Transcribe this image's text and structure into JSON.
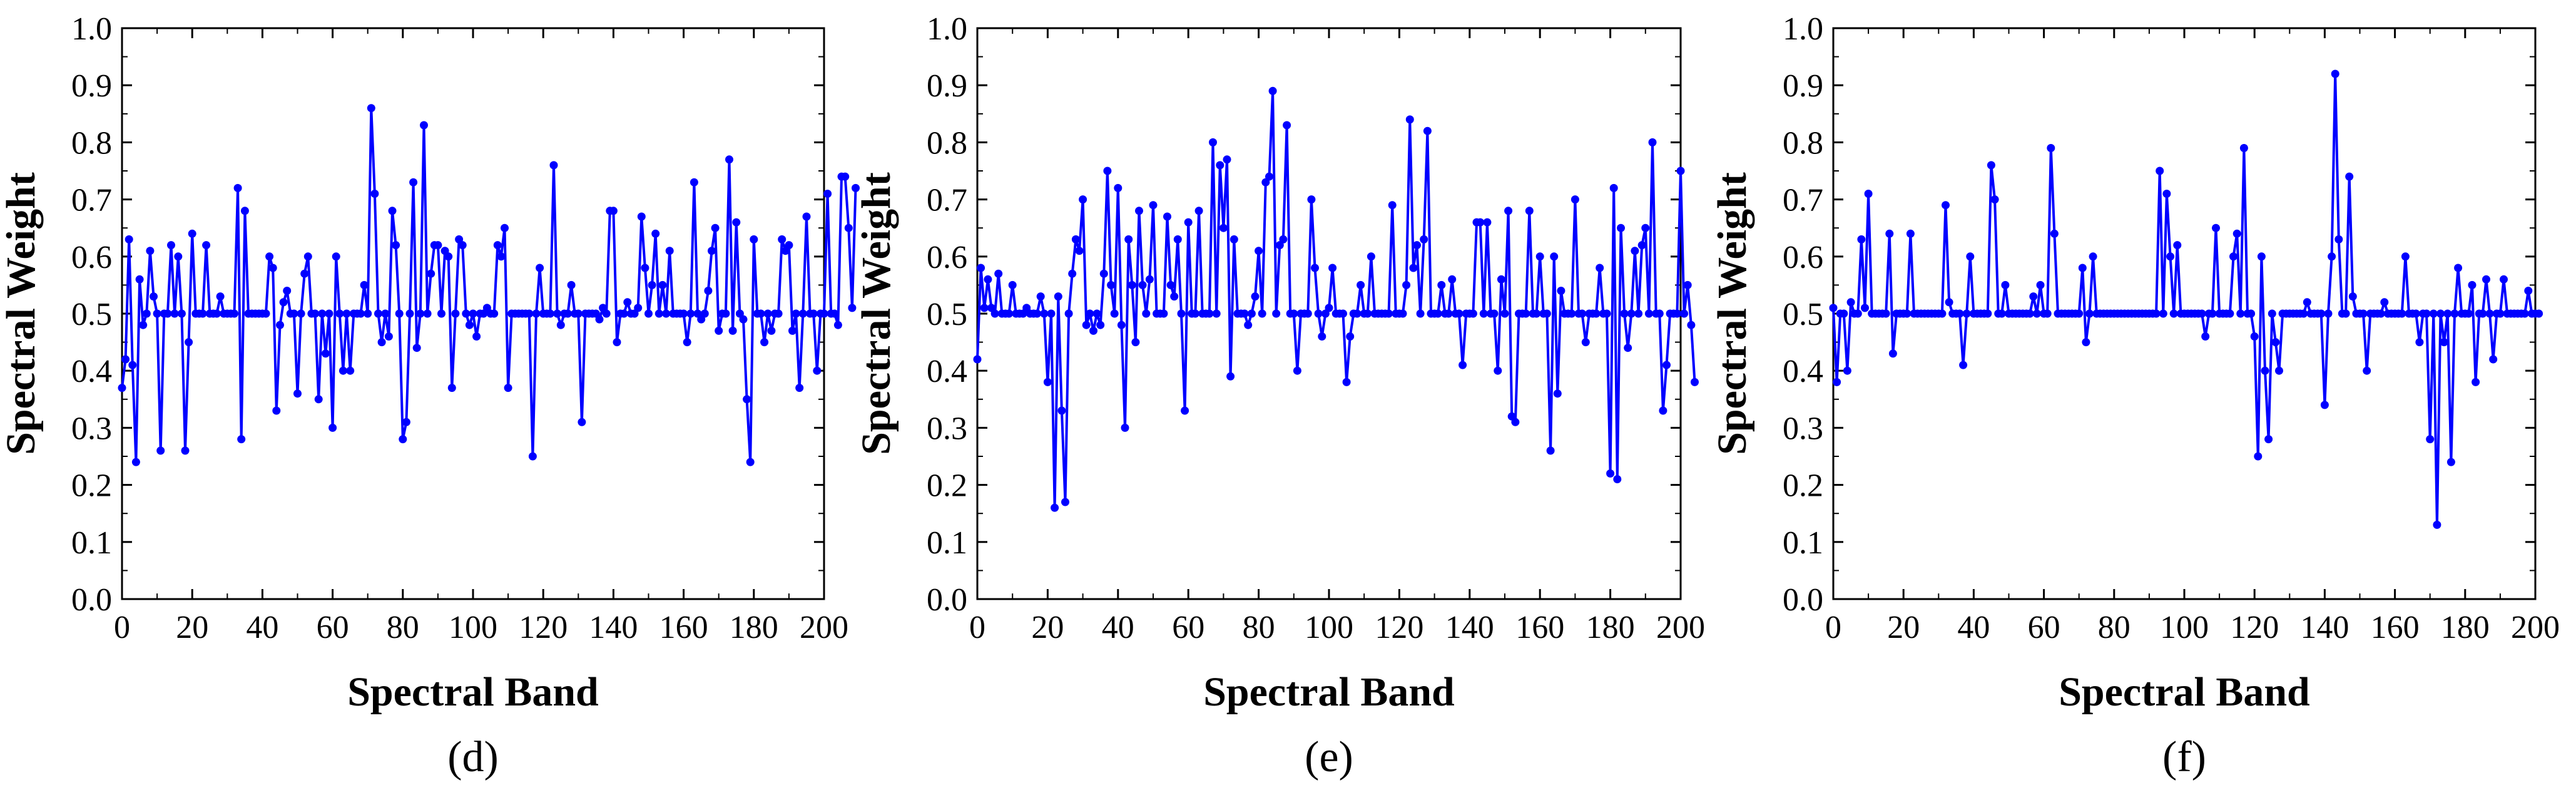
{
  "colors": {
    "series": "#0000ff",
    "axis": "#000000",
    "background": "#ffffff"
  },
  "chart_data": [
    {
      "type": "line",
      "panel_label": "(d)",
      "xlabel": "Spectral Band",
      "ylabel": "Spectral Weight",
      "xlim": [
        0,
        200
      ],
      "ylim": [
        0.0,
        1.0
      ],
      "xticks": [
        "0",
        "20",
        "40",
        "60",
        "80",
        "100",
        "120",
        "140",
        "160",
        "180",
        "200"
      ],
      "yticks": [
        "0.0",
        "0.1",
        "0.2",
        "0.3",
        "0.4",
        "0.5",
        "0.6",
        "0.7",
        "0.8",
        "0.9",
        "1.0"
      ],
      "grid": false,
      "markers": true,
      "x_start": 0,
      "values": [
        0.37,
        0.42,
        0.63,
        0.41,
        0.24,
        0.56,
        0.48,
        0.5,
        0.61,
        0.53,
        0.5,
        0.26,
        0.5,
        0.5,
        0.62,
        0.5,
        0.6,
        0.5,
        0.26,
        0.45,
        0.64,
        0.5,
        0.5,
        0.5,
        0.62,
        0.5,
        0.5,
        0.5,
        0.53,
        0.5,
        0.5,
        0.5,
        0.5,
        0.72,
        0.28,
        0.68,
        0.5,
        0.5,
        0.5,
        0.5,
        0.5,
        0.5,
        0.6,
        0.58,
        0.33,
        0.48,
        0.52,
        0.54,
        0.5,
        0.5,
        0.36,
        0.5,
        0.57,
        0.6,
        0.5,
        0.5,
        0.35,
        0.5,
        0.43,
        0.5,
        0.3,
        0.6,
        0.5,
        0.4,
        0.5,
        0.4,
        0.5,
        0.5,
        0.5,
        0.55,
        0.5,
        0.86,
        0.71,
        0.5,
        0.45,
        0.5,
        0.46,
        0.68,
        0.62,
        0.5,
        0.28,
        0.31,
        0.5,
        0.73,
        0.44,
        0.5,
        0.83,
        0.5,
        0.57,
        0.62,
        0.62,
        0.5,
        0.61,
        0.6,
        0.37,
        0.5,
        0.63,
        0.62,
        0.5,
        0.48,
        0.5,
        0.46,
        0.5,
        0.5,
        0.51,
        0.5,
        0.5,
        0.62,
        0.6,
        0.65,
        0.37,
        0.5,
        0.5,
        0.5,
        0.5,
        0.5,
        0.5,
        0.25,
        0.5,
        0.58,
        0.5,
        0.5,
        0.5,
        0.76,
        0.5,
        0.48,
        0.5,
        0.5,
        0.55,
        0.5,
        0.5,
        0.31,
        0.5,
        0.5,
        0.5,
        0.5,
        0.49,
        0.51,
        0.5,
        0.68,
        0.68,
        0.45,
        0.5,
        0.5,
        0.52,
        0.5,
        0.5,
        0.51,
        0.67,
        0.58,
        0.5,
        0.55,
        0.64,
        0.5,
        0.55,
        0.5,
        0.61,
        0.5,
        0.5,
        0.5,
        0.5,
        0.45,
        0.5,
        0.73,
        0.5,
        0.49,
        0.5,
        0.54,
        0.61,
        0.65,
        0.47,
        0.5,
        0.5,
        0.77,
        0.47,
        0.66,
        0.5,
        0.49,
        0.35,
        0.24,
        0.63,
        0.5,
        0.5,
        0.45,
        0.5,
        0.47,
        0.5,
        0.5,
        0.63,
        0.61,
        0.62,
        0.47,
        0.5,
        0.37,
        0.5,
        0.67,
        0.5,
        0.5,
        0.4,
        0.5,
        0.5,
        0.71,
        0.5,
        0.5,
        0.48,
        0.74,
        0.74,
        0.65,
        0.51,
        0.72
      ]
    },
    {
      "type": "line",
      "panel_label": "(e)",
      "xlabel": "Spectral Band",
      "ylabel": "Spectral Weight",
      "xlim": [
        0,
        200
      ],
      "ylim": [
        0.0,
        1.0
      ],
      "xticks": [
        "0",
        "20",
        "40",
        "60",
        "80",
        "100",
        "120",
        "140",
        "160",
        "180",
        "200"
      ],
      "yticks": [
        "0.0",
        "0.1",
        "0.2",
        "0.3",
        "0.4",
        "0.5",
        "0.6",
        "0.7",
        "0.8",
        "0.9",
        "1.0"
      ],
      "grid": false,
      "markers": true,
      "x_start": 0,
      "values": [
        0.42,
        0.58,
        0.51,
        0.56,
        0.51,
        0.5,
        0.57,
        0.5,
        0.5,
        0.5,
        0.55,
        0.5,
        0.5,
        0.5,
        0.51,
        0.5,
        0.5,
        0.5,
        0.53,
        0.5,
        0.38,
        0.5,
        0.16,
        0.53,
        0.33,
        0.17,
        0.5,
        0.57,
        0.63,
        0.61,
        0.7,
        0.48,
        0.5,
        0.47,
        0.5,
        0.48,
        0.57,
        0.75,
        0.55,
        0.5,
        0.72,
        0.48,
        0.3,
        0.63,
        0.55,
        0.45,
        0.68,
        0.55,
        0.5,
        0.56,
        0.69,
        0.5,
        0.5,
        0.5,
        0.67,
        0.55,
        0.53,
        0.63,
        0.5,
        0.33,
        0.66,
        0.5,
        0.5,
        0.68,
        0.5,
        0.5,
        0.5,
        0.8,
        0.5,
        0.76,
        0.65,
        0.77,
        0.39,
        0.63,
        0.5,
        0.5,
        0.5,
        0.48,
        0.5,
        0.53,
        0.61,
        0.5,
        0.73,
        0.74,
        0.89,
        0.5,
        0.62,
        0.63,
        0.83,
        0.5,
        0.5,
        0.4,
        0.5,
        0.5,
        0.5,
        0.7,
        0.58,
        0.5,
        0.46,
        0.5,
        0.51,
        0.58,
        0.5,
        0.5,
        0.5,
        0.38,
        0.46,
        0.5,
        0.5,
        0.55,
        0.5,
        0.5,
        0.6,
        0.5,
        0.5,
        0.5,
        0.5,
        0.5,
        0.69,
        0.5,
        0.5,
        0.5,
        0.55,
        0.84,
        0.58,
        0.62,
        0.5,
        0.63,
        0.82,
        0.5,
        0.5,
        0.5,
        0.55,
        0.5,
        0.5,
        0.56,
        0.5,
        0.5,
        0.41,
        0.5,
        0.5,
        0.5,
        0.66,
        0.66,
        0.5,
        0.66,
        0.5,
        0.5,
        0.4,
        0.56,
        0.5,
        0.68,
        0.32,
        0.31,
        0.5,
        0.5,
        0.5,
        0.68,
        0.5,
        0.5,
        0.6,
        0.5,
        0.5,
        0.26,
        0.6,
        0.36,
        0.54,
        0.5,
        0.5,
        0.5,
        0.7,
        0.5,
        0.5,
        0.45,
        0.5,
        0.5,
        0.5,
        0.58,
        0.5,
        0.5,
        0.22,
        0.72,
        0.21,
        0.65,
        0.5,
        0.44,
        0.5,
        0.61,
        0.5,
        0.62,
        0.65,
        0.5,
        0.8,
        0.5,
        0.5,
        0.33,
        0.41,
        0.5,
        0.5,
        0.5,
        0.75,
        0.5,
        0.55,
        0.48,
        0.38
      ]
    },
    {
      "type": "line",
      "panel_label": "(f)",
      "xlabel": "Spectral Band",
      "ylabel": "Spectral Weight",
      "xlim": [
        0,
        200
      ],
      "ylim": [
        0.0,
        1.0
      ],
      "xticks": [
        "0",
        "20",
        "40",
        "60",
        "80",
        "100",
        "120",
        "140",
        "160",
        "180",
        "200"
      ],
      "yticks": [
        "0.0",
        "0.1",
        "0.2",
        "0.3",
        "0.4",
        "0.5",
        "0.6",
        "0.7",
        "0.8",
        "0.9",
        "1.0"
      ],
      "grid": false,
      "markers": true,
      "x_start": 0,
      "values": [
        0.51,
        0.38,
        0.5,
        0.5,
        0.4,
        0.52,
        0.5,
        0.5,
        0.63,
        0.51,
        0.71,
        0.5,
        0.5,
        0.5,
        0.5,
        0.5,
        0.64,
        0.43,
        0.5,
        0.5,
        0.5,
        0.5,
        0.64,
        0.5,
        0.5,
        0.5,
        0.5,
        0.5,
        0.5,
        0.5,
        0.5,
        0.5,
        0.69,
        0.52,
        0.5,
        0.5,
        0.5,
        0.41,
        0.5,
        0.6,
        0.5,
        0.5,
        0.5,
        0.5,
        0.5,
        0.76,
        0.7,
        0.5,
        0.5,
        0.55,
        0.5,
        0.5,
        0.5,
        0.5,
        0.5,
        0.5,
        0.5,
        0.53,
        0.5,
        0.55,
        0.5,
        0.5,
        0.79,
        0.64,
        0.5,
        0.5,
        0.5,
        0.5,
        0.5,
        0.5,
        0.5,
        0.58,
        0.45,
        0.5,
        0.6,
        0.5,
        0.5,
        0.5,
        0.5,
        0.5,
        0.5,
        0.5,
        0.5,
        0.5,
        0.5,
        0.5,
        0.5,
        0.5,
        0.5,
        0.5,
        0.5,
        0.5,
        0.5,
        0.75,
        0.5,
        0.71,
        0.6,
        0.5,
        0.62,
        0.5,
        0.5,
        0.5,
        0.5,
        0.5,
        0.5,
        0.5,
        0.46,
        0.5,
        0.5,
        0.65,
        0.5,
        0.5,
        0.5,
        0.5,
        0.6,
        0.64,
        0.5,
        0.79,
        0.5,
        0.5,
        0.46,
        0.25,
        0.6,
        0.4,
        0.28,
        0.5,
        0.45,
        0.4,
        0.5,
        0.5,
        0.5,
        0.5,
        0.5,
        0.5,
        0.5,
        0.52,
        0.5,
        0.5,
        0.5,
        0.5,
        0.34,
        0.5,
        0.6,
        0.92,
        0.63,
        0.5,
        0.5,
        0.74,
        0.53,
        0.5,
        0.5,
        0.5,
        0.4,
        0.5,
        0.5,
        0.5,
        0.5,
        0.52,
        0.5,
        0.5,
        0.5,
        0.5,
        0.5,
        0.6,
        0.5,
        0.5,
        0.5,
        0.45,
        0.5,
        0.5,
        0.28,
        0.5,
        0.13,
        0.5,
        0.45,
        0.5,
        0.24,
        0.5,
        0.58,
        0.5,
        0.5,
        0.5,
        0.55,
        0.38,
        0.5,
        0.5,
        0.56,
        0.5,
        0.42,
        0.5,
        0.5,
        0.56,
        0.5,
        0.5,
        0.5,
        0.5,
        0.5,
        0.5,
        0.54,
        0.5,
        0.5,
        0.5
      ]
    }
  ]
}
